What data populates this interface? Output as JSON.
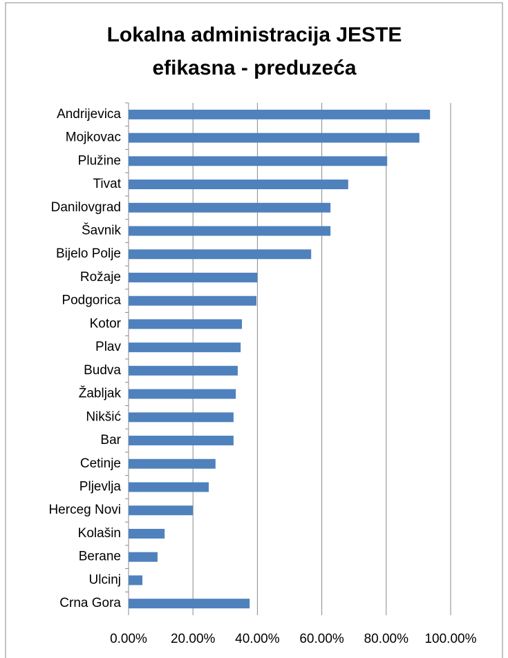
{
  "chart_data": {
    "type": "bar",
    "orientation": "horizontal",
    "title": [
      "Lokalna administracija JESTE",
      "efikasna - preduzeća"
    ],
    "categories": [
      "Andrijevica",
      "Mojkovac",
      "Plužine",
      "Tivat",
      "Danilovgrad",
      "Šavnik",
      "Bijelo Polje",
      "Rožaje",
      "Podgorica",
      "Kotor",
      "Plav",
      "Budva",
      "Žabljak",
      "Nikšić",
      "Bar",
      "Cetinje",
      "Pljevlja",
      "Herceg Novi",
      "Kolašin",
      "Berane",
      "Ulcinj",
      "Crna Gora"
    ],
    "values": [
      93.6,
      90.3,
      80.3,
      68.2,
      62.7,
      62.7,
      56.7,
      40,
      39.7,
      35.2,
      34.8,
      33.9,
      33.3,
      32.6,
      32.6,
      27,
      24.9,
      20,
      11.2,
      9,
      4.3,
      37.6
    ],
    "color": "#4f81bd",
    "xlim": [
      0,
      100
    ],
    "xticks": [
      {
        "value": 0,
        "label": "0.00%"
      },
      {
        "value": 20,
        "label": "20.00%"
      },
      {
        "value": 40,
        "label": "40.00%"
      },
      {
        "value": 60,
        "label": "60.00%"
      },
      {
        "value": 80,
        "label": "80.00%"
      },
      {
        "value": 100,
        "label": "100.00%"
      }
    ],
    "grid": true
  }
}
